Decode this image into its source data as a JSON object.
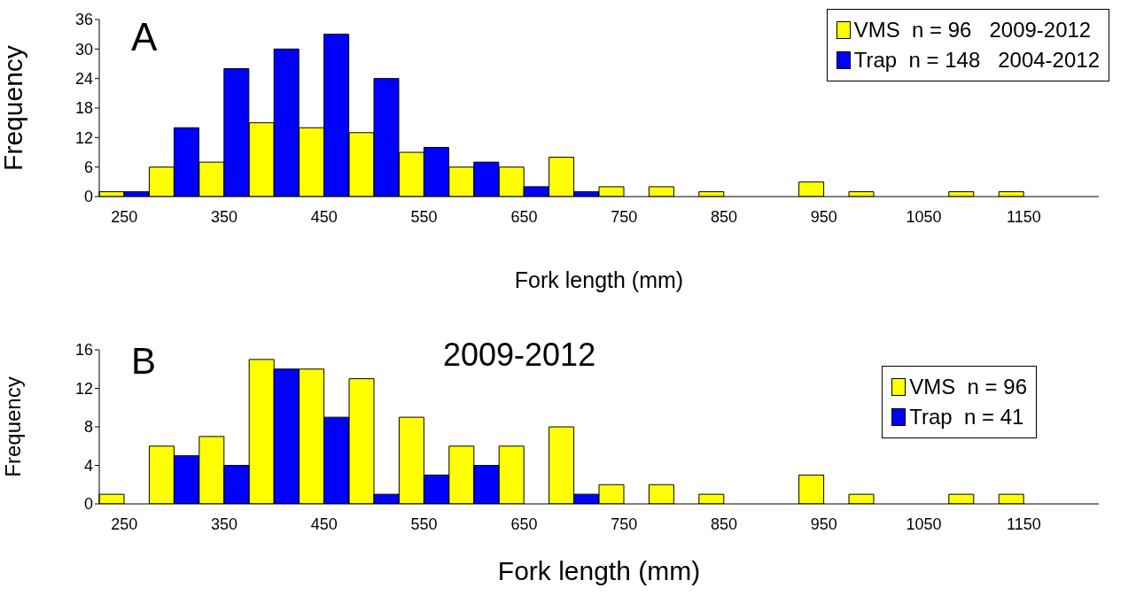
{
  "chart_data": [
    {
      "type": "bar",
      "annotations": [
        "A"
      ],
      "xlabel": "Fork length (mm)",
      "ylabel": "Frequency",
      "categories": [
        "250",
        null,
        "350",
        null,
        "450",
        null,
        "550",
        null,
        "650",
        null,
        "750",
        null,
        "850",
        null,
        "950",
        null,
        "1050",
        null,
        "1150",
        null
      ],
      "series": [
        {
          "name": "VMS  n = 96   2009-2012",
          "color": "#ffff00",
          "values": [
            1,
            6,
            7,
            15,
            14,
            13,
            9,
            6,
            6,
            8,
            2,
            2,
            1,
            0,
            3,
            1,
            0,
            1,
            1,
            0
          ]
        },
        {
          "name": "Trap  n = 148   2004-2012",
          "color": "#0000ff",
          "values": [
            1,
            14,
            26,
            30,
            33,
            24,
            10,
            7,
            2,
            1,
            0,
            0,
            0,
            0,
            0,
            0,
            0,
            0,
            0,
            0
          ]
        }
      ],
      "ylim": [
        0,
        36
      ],
      "yticks": [
        0,
        6,
        12,
        18,
        24,
        30,
        36
      ],
      "grid": false,
      "legend": "top right"
    },
    {
      "type": "bar",
      "annotations": [
        "B",
        "2009-2012"
      ],
      "xlabel": "Fork length (mm)",
      "ylabel": "Frequency",
      "categories": [
        "250",
        null,
        "350",
        null,
        "450",
        null,
        "550",
        null,
        "650",
        null,
        "750",
        null,
        "850",
        null,
        "950",
        null,
        "1050",
        null,
        "1150",
        null
      ],
      "series": [
        {
          "name": "VMS  n = 96",
          "color": "#ffff00",
          "values": [
            1,
            6,
            7,
            15,
            14,
            13,
            9,
            6,
            6,
            8,
            2,
            2,
            1,
            0,
            3,
            1,
            0,
            1,
            1,
            0
          ]
        },
        {
          "name": "Trap  n = 41",
          "color": "#0000ff",
          "values": [
            0,
            5,
            4,
            14,
            9,
            1,
            3,
            4,
            0,
            1,
            0,
            0,
            0,
            0,
            0,
            0,
            0,
            0,
            0,
            0
          ]
        }
      ],
      "ylim": [
        0,
        16
      ],
      "yticks": [
        0,
        4,
        8,
        12,
        16
      ],
      "grid": false,
      "legend": "top right"
    }
  ]
}
